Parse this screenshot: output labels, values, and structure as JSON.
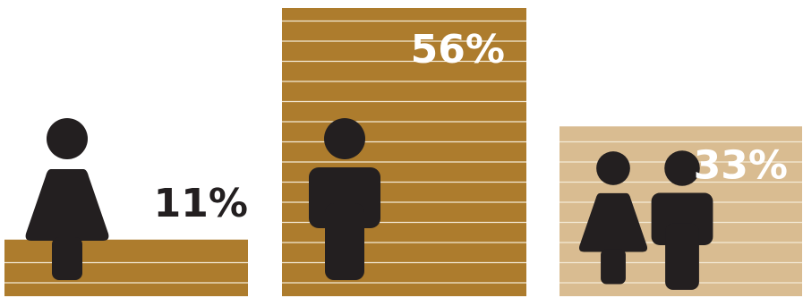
{
  "chart_data": {
    "type": "bar",
    "categories": [
      "female",
      "male",
      "both"
    ],
    "values": [
      11,
      56,
      33
    ],
    "value_labels": [
      "11%",
      "56%",
      "33%"
    ],
    "unit": "%",
    "grid": true,
    "icons": [
      "woman-icon",
      "man-icon",
      "woman-and-man-icon"
    ]
  },
  "colors": {
    "bar_dark": "#ad7c2d",
    "bar_light": "#d9bc91",
    "stripe": "#f4ead6",
    "figure": "#231f20",
    "label_dark": "#231f20",
    "label_light": "#ffffff"
  }
}
